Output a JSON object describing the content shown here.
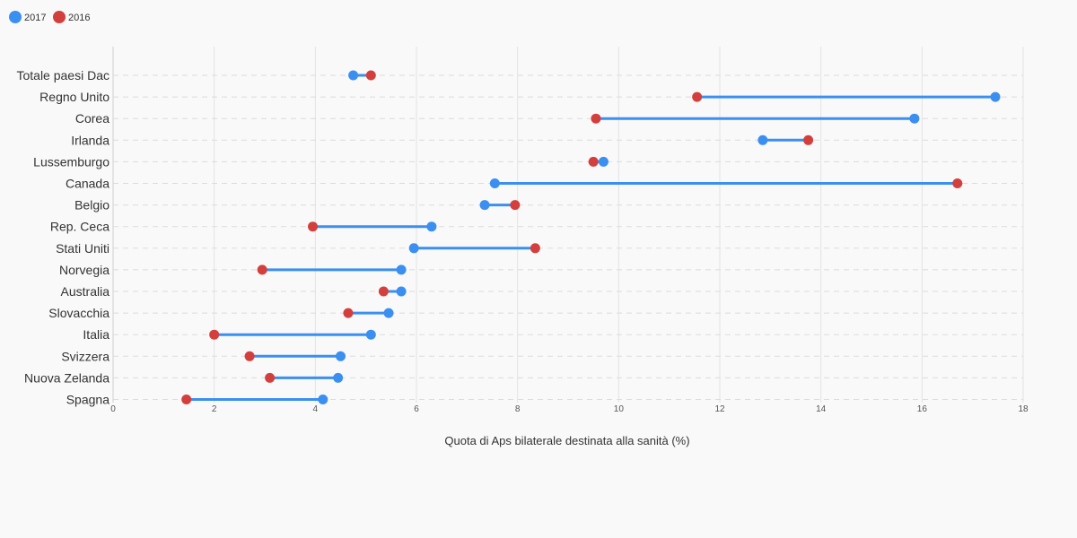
{
  "chart_data": {
    "type": "dumbbell",
    "xlabel": "Quota di Aps bilaterale destinata alla sanità (%)",
    "xlim": [
      0,
      18
    ],
    "xticks": [
      0,
      2,
      4,
      6,
      8,
      10,
      12,
      14,
      16,
      18
    ],
    "grid": true,
    "legend_placement": "top-left",
    "categories": [
      "Totale paesi Dac",
      "Regno Unito",
      "Corea",
      "Irlanda",
      "Lussemburgo",
      "Canada",
      "Belgio",
      "Rep. Ceca",
      "Stati Uniti",
      "Norvegia",
      "Australia",
      "Slovacchia",
      "Italia",
      "Svizzera",
      "Nuova Zelanda",
      "Spagna"
    ],
    "series": [
      {
        "name": "2017",
        "color": "#3b8ff0",
        "values": [
          4.75,
          17.45,
          15.85,
          12.85,
          9.7,
          7.55,
          7.35,
          6.3,
          5.95,
          5.7,
          5.7,
          5.45,
          5.1,
          4.5,
          4.45,
          4.15
        ]
      },
      {
        "name": "2016",
        "color": "#d33f3c",
        "values": [
          5.1,
          11.55,
          9.55,
          13.75,
          9.5,
          16.7,
          7.95,
          3.95,
          8.35,
          2.95,
          5.35,
          4.65,
          2.0,
          2.7,
          3.1,
          1.45
        ]
      }
    ],
    "line_color": "#3b8ff0"
  }
}
